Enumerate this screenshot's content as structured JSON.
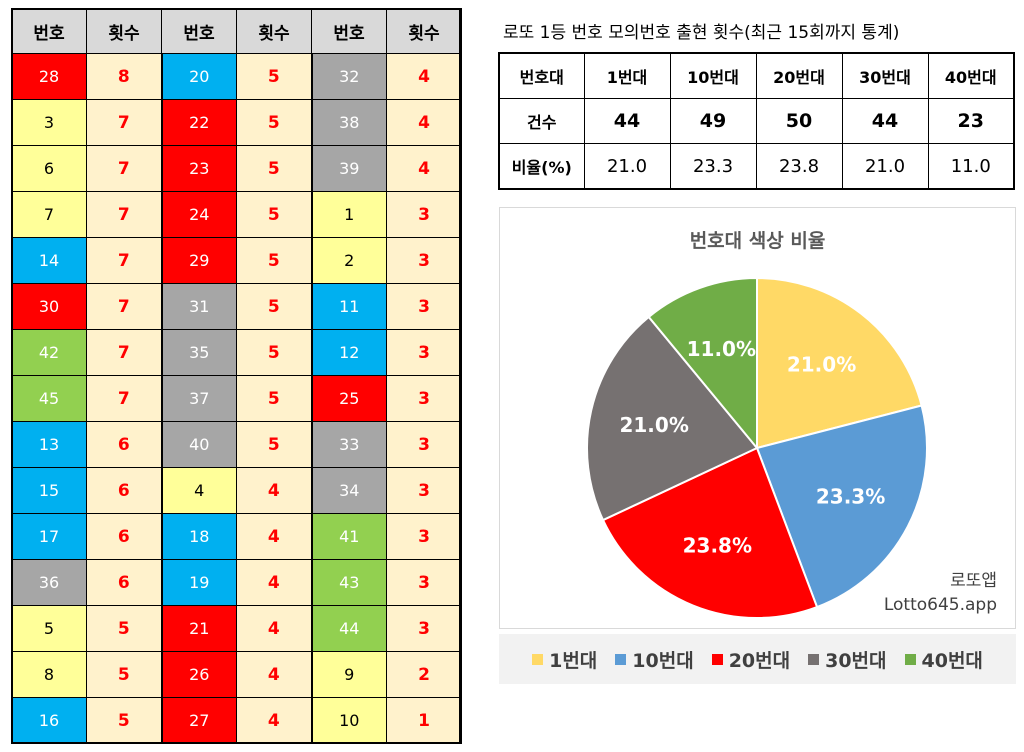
{
  "table": {
    "headers": [
      "번호",
      "횟수",
      "번호",
      "횟수",
      "번호",
      "횟수"
    ],
    "rows": [
      [
        {
          "n": "28",
          "c": "8",
          "g": "c20"
        },
        {
          "n": "20",
          "c": "5",
          "g": "c10"
        },
        {
          "n": "32",
          "c": "4",
          "g": "c30"
        }
      ],
      [
        {
          "n": "3",
          "c": "7",
          "g": "c1"
        },
        {
          "n": "22",
          "c": "5",
          "g": "c20"
        },
        {
          "n": "38",
          "c": "4",
          "g": "c30"
        }
      ],
      [
        {
          "n": "6",
          "c": "7",
          "g": "c1"
        },
        {
          "n": "23",
          "c": "5",
          "g": "c20"
        },
        {
          "n": "39",
          "c": "4",
          "g": "c30"
        }
      ],
      [
        {
          "n": "7",
          "c": "7",
          "g": "c1"
        },
        {
          "n": "24",
          "c": "5",
          "g": "c20"
        },
        {
          "n": "1",
          "c": "3",
          "g": "c1"
        }
      ],
      [
        {
          "n": "14",
          "c": "7",
          "g": "c10"
        },
        {
          "n": "29",
          "c": "5",
          "g": "c20"
        },
        {
          "n": "2",
          "c": "3",
          "g": "c1"
        }
      ],
      [
        {
          "n": "30",
          "c": "7",
          "g": "c20"
        },
        {
          "n": "31",
          "c": "5",
          "g": "c30"
        },
        {
          "n": "11",
          "c": "3",
          "g": "c10"
        }
      ],
      [
        {
          "n": "42",
          "c": "7",
          "g": "c40"
        },
        {
          "n": "35",
          "c": "5",
          "g": "c30"
        },
        {
          "n": "12",
          "c": "3",
          "g": "c10"
        }
      ],
      [
        {
          "n": "45",
          "c": "7",
          "g": "c40"
        },
        {
          "n": "37",
          "c": "5",
          "g": "c30"
        },
        {
          "n": "25",
          "c": "3",
          "g": "c20"
        }
      ],
      [
        {
          "n": "13",
          "c": "6",
          "g": "c10"
        },
        {
          "n": "40",
          "c": "5",
          "g": "c30"
        },
        {
          "n": "33",
          "c": "3",
          "g": "c30"
        }
      ],
      [
        {
          "n": "15",
          "c": "6",
          "g": "c10"
        },
        {
          "n": "4",
          "c": "4",
          "g": "c1"
        },
        {
          "n": "34",
          "c": "3",
          "g": "c30"
        }
      ],
      [
        {
          "n": "17",
          "c": "6",
          "g": "c10"
        },
        {
          "n": "18",
          "c": "4",
          "g": "c10"
        },
        {
          "n": "41",
          "c": "3",
          "g": "c40"
        }
      ],
      [
        {
          "n": "36",
          "c": "6",
          "g": "c30"
        },
        {
          "n": "19",
          "c": "4",
          "g": "c10"
        },
        {
          "n": "43",
          "c": "3",
          "g": "c40"
        }
      ],
      [
        {
          "n": "5",
          "c": "5",
          "g": "c1"
        },
        {
          "n": "21",
          "c": "4",
          "g": "c20"
        },
        {
          "n": "44",
          "c": "3",
          "g": "c40"
        }
      ],
      [
        {
          "n": "8",
          "c": "5",
          "g": "c1"
        },
        {
          "n": "26",
          "c": "4",
          "g": "c20"
        },
        {
          "n": "9",
          "c": "2",
          "g": "c1"
        }
      ],
      [
        {
          "n": "16",
          "c": "5",
          "g": "c10"
        },
        {
          "n": "27",
          "c": "4",
          "g": "c20"
        },
        {
          "n": "10",
          "c": "1",
          "g": "c1"
        }
      ]
    ]
  },
  "stats": {
    "title": "로또 1등 번호 모의번호 출현 횟수(최근 15회까지 통계)",
    "header_label": "번호대",
    "count_label": "건수",
    "rate_label": "비율(%)",
    "bands": [
      "1번대",
      "10번대",
      "20번대",
      "30번대",
      "40번대"
    ],
    "counts": [
      "44",
      "49",
      "50",
      "44",
      "23"
    ],
    "rates": [
      "21.0",
      "23.3",
      "23.8",
      "21.0",
      "11.0"
    ]
  },
  "chart_data": {
    "type": "pie",
    "title": "번호대 색상 비율",
    "categories": [
      "1번대",
      "10번대",
      "20번대",
      "30번대",
      "40번대"
    ],
    "values": [
      21.0,
      23.3,
      23.8,
      21.0,
      11.0
    ],
    "labels": [
      "21.0%",
      "23.3%",
      "23.8%",
      "21.0%",
      "11.0%"
    ],
    "colors": [
      "#ffd966",
      "#5b9bd5",
      "#ff0000",
      "#767171",
      "#70ad47"
    ],
    "legend_position": "bottom"
  },
  "watermark": {
    "name": "로또앱",
    "url": "Lotto645.app"
  }
}
